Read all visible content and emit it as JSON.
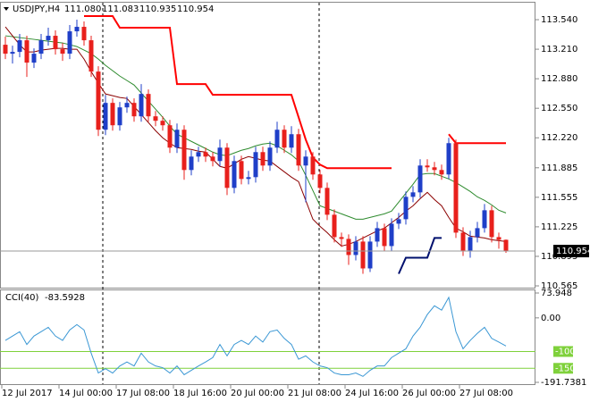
{
  "chart_data": [
    {
      "type": "candlestick",
      "title": "USDJPY,H4",
      "last_bar_labels": [
        "111.080",
        "111.083",
        "110.935",
        "110.954"
      ],
      "categories": [
        "12 Jul 2017",
        null,
        null,
        null,
        null,
        null,
        null,
        null,
        "14 Jul 00:00",
        null,
        null,
        null,
        null,
        null,
        null,
        null,
        "17 Jul 08:00",
        null,
        null,
        null,
        null,
        null,
        null,
        null,
        "18 Jul 16:00",
        null,
        null,
        null,
        null,
        null,
        null,
        null,
        "20 Jul 00:00",
        null,
        null,
        null,
        null,
        null,
        null,
        null,
        "21 Jul 08:00",
        null,
        null,
        null,
        null,
        null,
        null,
        null,
        "24 Jul 16:00",
        null,
        null,
        null,
        null,
        null,
        null,
        null,
        "26 Jul 00:00",
        null,
        null,
        null,
        null,
        null,
        null,
        null,
        "27 Jul 08:00",
        null,
        null,
        null,
        null,
        null,
        null
      ],
      "open": [
        113.26,
        113.16,
        113.18,
        113.31,
        113.06,
        113.16,
        113.31,
        113.36,
        113.21,
        113.16,
        113.41,
        113.46,
        113.31,
        112.96,
        112.31,
        112.61,
        112.36,
        112.56,
        112.61,
        112.46,
        112.71,
        112.46,
        112.41,
        112.36,
        112.11,
        112.31,
        111.86,
        112.01,
        112.06,
        112.01,
        111.96,
        112.11,
        111.66,
        111.96,
        111.76,
        111.78,
        112.06,
        111.91,
        112.11,
        112.31,
        112.11,
        112.26,
        111.91,
        112.01,
        111.81,
        111.66,
        111.36,
        111.11,
        111.09,
        110.91,
        111.06,
        110.76,
        111.06,
        111.21,
        111.01,
        111.26,
        111.31,
        111.56,
        111.61,
        111.91,
        111.89,
        111.86,
        111.81,
        112.16,
        111.16,
        110.96,
        111.11,
        111.21,
        111.41,
        111.11,
        111.08
      ],
      "high": [
        113.35,
        113.25,
        113.38,
        113.36,
        113.22,
        113.38,
        113.45,
        113.42,
        113.28,
        113.48,
        113.54,
        113.52,
        113.36,
        113.02,
        112.7,
        112.66,
        112.62,
        112.68,
        112.66,
        112.82,
        112.76,
        112.52,
        112.46,
        112.42,
        112.38,
        112.36,
        112.08,
        112.12,
        112.11,
        112.06,
        112.2,
        112.16,
        112.02,
        112.02,
        111.85,
        112.12,
        112.12,
        112.18,
        112.4,
        112.36,
        112.35,
        112.32,
        112.08,
        112.06,
        111.86,
        111.72,
        111.42,
        111.16,
        111.14,
        111.12,
        111.12,
        111.12,
        111.28,
        111.26,
        111.32,
        111.38,
        111.62,
        111.68,
        111.98,
        111.98,
        111.95,
        111.92,
        112.22,
        112.2,
        111.22,
        111.18,
        111.28,
        111.48,
        111.46,
        111.16,
        111.083
      ],
      "low": [
        113.1,
        113.05,
        113.12,
        112.9,
        113.0,
        113.1,
        113.25,
        113.15,
        113.08,
        113.1,
        113.35,
        113.25,
        112.9,
        112.24,
        112.25,
        112.3,
        112.3,
        112.5,
        112.4,
        112.4,
        112.4,
        112.35,
        112.3,
        112.05,
        112.05,
        111.75,
        111.8,
        111.95,
        111.95,
        111.9,
        111.9,
        111.58,
        111.6,
        111.7,
        111.7,
        111.72,
        111.85,
        111.85,
        112.05,
        112.05,
        112.05,
        111.85,
        111.5,
        111.75,
        111.6,
        111.3,
        111.05,
        111.0,
        110.8,
        110.85,
        110.7,
        110.72,
        111.0,
        110.95,
        110.95,
        111.2,
        111.25,
        111.5,
        111.55,
        111.84,
        111.8,
        111.75,
        111.76,
        111.1,
        110.9,
        110.88,
        111.05,
        111.16,
        111.05,
        110.98,
        110.935
      ],
      "close": [
        113.16,
        113.18,
        113.31,
        113.06,
        113.16,
        113.31,
        113.36,
        113.21,
        113.16,
        113.41,
        113.46,
        113.31,
        112.96,
        112.31,
        112.61,
        112.36,
        112.56,
        112.61,
        112.46,
        112.71,
        112.46,
        112.41,
        112.36,
        112.11,
        112.31,
        111.86,
        112.01,
        112.06,
        112.01,
        111.96,
        112.11,
        111.66,
        111.96,
        111.76,
        111.78,
        112.06,
        111.91,
        112.11,
        112.31,
        112.11,
        112.26,
        111.91,
        112.01,
        111.81,
        111.66,
        111.36,
        111.11,
        111.09,
        110.91,
        111.06,
        110.76,
        111.06,
        111.21,
        111.01,
        111.26,
        111.31,
        111.56,
        111.61,
        111.91,
        111.89,
        111.86,
        111.81,
        112.16,
        111.16,
        110.96,
        111.11,
        111.21,
        111.41,
        111.11,
        111.08,
        110.954
      ],
      "up_color": "#1f3fc8",
      "down_color": "#e8201c",
      "series": [
        {
          "color": "#2e8b2e",
          "values": [
            113.36,
            113.35,
            113.34,
            113.33,
            113.32,
            113.31,
            113.3,
            113.29,
            113.28,
            113.26,
            113.24,
            113.2,
            113.16,
            113.1,
            113.03,
            112.97,
            112.91,
            112.86,
            112.81,
            112.72,
            112.63,
            112.54,
            112.45,
            112.35,
            112.26,
            112.22,
            112.18,
            112.14,
            112.1,
            112.06,
            112.03,
            112.02,
            112.05,
            112.08,
            112.1,
            112.13,
            112.15,
            112.16,
            112.13,
            112.08,
            112.03,
            111.96,
            111.8,
            111.63,
            111.46,
            111.43,
            111.4,
            111.37,
            111.34,
            111.31,
            111.31,
            111.33,
            111.35,
            111.37,
            111.4,
            111.5,
            111.6,
            111.7,
            111.81,
            111.82,
            111.82,
            111.79,
            111.76,
            111.72,
            111.67,
            111.62,
            111.56,
            111.52,
            111.47,
            111.41,
            111.38
          ]
        },
        {
          "color": "#8b0000",
          "values": [
            113.46,
            113.36,
            113.26,
            113.18,
            113.18,
            113.2,
            113.21,
            113.22,
            113.22,
            113.21,
            113.21,
            113.1,
            112.96,
            112.83,
            112.71,
            112.69,
            112.67,
            112.66,
            112.57,
            112.48,
            112.39,
            112.3,
            112.22,
            112.16,
            112.11,
            112.1,
            112.09,
            112.07,
            112.06,
            111.98,
            111.9,
            111.88,
            111.93,
            111.98,
            112.01,
            111.99,
            111.97,
            111.96,
            111.9,
            111.84,
            111.78,
            111.73,
            111.52,
            111.31,
            111.23,
            111.16,
            111.08,
            111.01,
            111.03,
            111.06,
            111.1,
            111.14,
            111.18,
            111.21,
            111.27,
            111.33,
            111.4,
            111.46,
            111.54,
            111.61,
            111.53,
            111.46,
            111.33,
            111.21,
            111.17,
            111.12,
            111.11,
            111.1,
            111.08,
            111.07,
            111.06
          ]
        },
        {
          "color": "#ff0000",
          "width": 2,
          "values": [
            null,
            null,
            null,
            null,
            null,
            null,
            null,
            null,
            null,
            null,
            null,
            113.58,
            113.58,
            113.58,
            113.58,
            113.58,
            113.45,
            113.45,
            113.45,
            113.45,
            113.45,
            113.45,
            113.45,
            113.45,
            112.82,
            112.82,
            112.82,
            112.82,
            112.82,
            112.7,
            112.7,
            112.7,
            112.7,
            112.7,
            112.7,
            112.7,
            112.7,
            112.7,
            112.7,
            112.7,
            112.7,
            112.45,
            112.2,
            112.0,
            111.92,
            111.88,
            111.88,
            111.88,
            111.88,
            111.88,
            111.88,
            111.88,
            111.88,
            111.88,
            111.88,
            null,
            null,
            null,
            null,
            null,
            null,
            null,
            112.26,
            112.16,
            112.16,
            112.16,
            112.16,
            112.16,
            112.16,
            112.16,
            112.16
          ]
        },
        {
          "color": "#00106e",
          "width": 2,
          "values": [
            null,
            null,
            null,
            null,
            null,
            null,
            null,
            null,
            null,
            null,
            null,
            null,
            null,
            null,
            null,
            null,
            null,
            null,
            null,
            null,
            null,
            null,
            null,
            null,
            null,
            null,
            null,
            null,
            null,
            null,
            null,
            null,
            null,
            null,
            null,
            null,
            null,
            null,
            null,
            null,
            null,
            null,
            null,
            null,
            null,
            null,
            null,
            null,
            null,
            null,
            null,
            null,
            null,
            null,
            null,
            110.7,
            110.88,
            110.88,
            110.88,
            110.88,
            111.1,
            111.1,
            null,
            null,
            null,
            null,
            null,
            null,
            null,
            null,
            null
          ]
        }
      ],
      "ylim": [
        110.545,
        113.74
      ],
      "yticks": [
        {
          "value": 113.54,
          "label": "113.540"
        },
        {
          "value": 113.21,
          "label": "113.210"
        },
        {
          "value": 112.88,
          "label": "112.880"
        },
        {
          "value": 112.55,
          "label": "112.550"
        },
        {
          "value": 112.22,
          "label": "112.220"
        },
        {
          "value": 111.885,
          "label": "111.885"
        },
        {
          "value": 111.555,
          "label": "111.555"
        },
        {
          "value": 111.225,
          "label": "111.225"
        },
        {
          "value": 110.895,
          "label": "110.895"
        },
        {
          "value": 110.565,
          "label": "110.565"
        }
      ]
    },
    {
      "type": "line",
      "title": "CCI(40)",
      "color": "#3a97d4",
      "values": [
        -67,
        -54,
        -41,
        -79,
        -54,
        -41,
        -28,
        -54,
        -67,
        -36,
        -20,
        -36,
        -105,
        -164,
        -151,
        -164,
        -143,
        -131,
        -143,
        -105,
        -131,
        -143,
        -148,
        -164,
        -143,
        -169,
        -156,
        -143,
        -131,
        -118,
        -79,
        -113,
        -79,
        -67,
        -79,
        -54,
        -72,
        -41,
        -36,
        -61,
        -79,
        -123,
        -113,
        -131,
        -143,
        -148,
        -164,
        -169,
        -169,
        -164,
        -174,
        -156,
        -143,
        -143,
        -118,
        -105,
        -92,
        -54,
        -28,
        10,
        36,
        23,
        61,
        -41,
        -92,
        -67,
        -46,
        -28,
        -61,
        -72,
        -83.5928
      ],
      "ylim": [
        -191.7381,
        73.948
      ],
      "yticks": [
        73.948,
        {
          "value": 0,
          "label": "0.00"
        },
        -191.7381
      ],
      "levels": [
        -100,
        -150
      ],
      "level_color": "#7fd13b"
    }
  ]
}
